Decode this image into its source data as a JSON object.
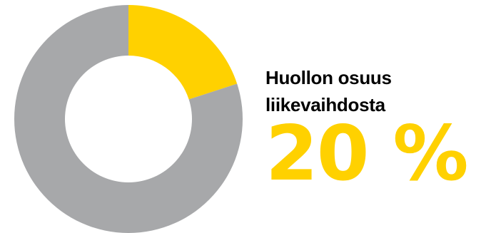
{
  "caption": {
    "line1": "Huollon osuus",
    "line2": "liikevaihdosta"
  },
  "highlight_value": "20 %",
  "colors": {
    "accent": "#FFD100",
    "rest": "#A7A8AA",
    "text": "#000000"
  },
  "chart_data": {
    "type": "pie",
    "variant": "donut",
    "title": "",
    "slices": [
      {
        "value": 20,
        "color": "#FFD100"
      },
      {
        "value": 80,
        "color": "#A7A8AA"
      }
    ]
  }
}
